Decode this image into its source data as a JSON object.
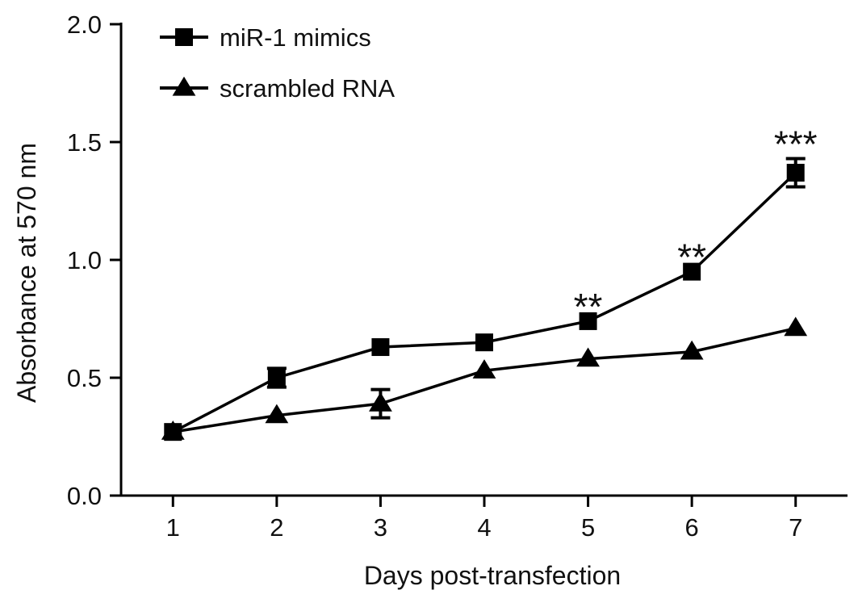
{
  "chart_data": {
    "type": "line",
    "title": "",
    "xlabel": "Days post-transfection",
    "ylabel": "Absorbance at 570 nm",
    "x": [
      1,
      2,
      3,
      4,
      5,
      6,
      7
    ],
    "xlim": [
      0.5,
      7.5
    ],
    "ylim": [
      0.0,
      2.0
    ],
    "x_ticks": [
      "1",
      "2",
      "3",
      "4",
      "5",
      "6",
      "7"
    ],
    "y_ticks": [
      "0.0",
      "0.5",
      "1.0",
      "1.5",
      "2.0"
    ],
    "grid": false,
    "legend_position": "top-left",
    "series": [
      {
        "name": "miR-1 mimics",
        "marker": "square",
        "values": [
          0.27,
          0.5,
          0.63,
          0.65,
          0.74,
          0.95,
          1.37
        ],
        "errors": [
          0.0,
          0.04,
          0.0,
          0.0,
          0.0,
          0.0,
          0.06
        ]
      },
      {
        "name": "scrambled RNA",
        "marker": "triangle",
        "values": [
          0.27,
          0.34,
          0.39,
          0.53,
          0.58,
          0.61,
          0.71
        ],
        "errors": [
          0.0,
          0.0,
          0.06,
          0.0,
          0.0,
          0.0,
          0.0
        ]
      }
    ],
    "annotations": [
      {
        "x": 5,
        "label": "**"
      },
      {
        "x": 6,
        "label": "**"
      },
      {
        "x": 7,
        "label": "***"
      }
    ],
    "colors": {
      "line": "#000000",
      "text": "#111111"
    }
  }
}
